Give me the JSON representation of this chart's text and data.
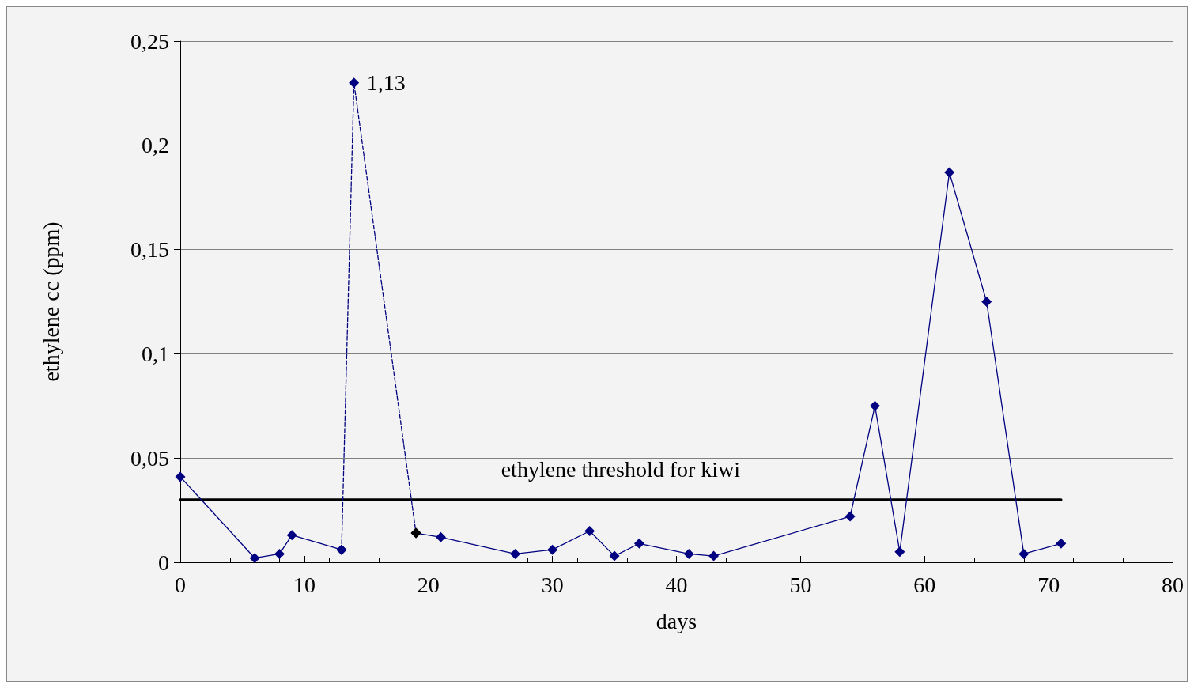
{
  "chart_data": {
    "type": "line",
    "xlabel": "days",
    "ylabel": "ethylene cc (ppm)",
    "xlim": [
      0,
      80
    ],
    "xticks": [
      0,
      10,
      20,
      30,
      40,
      50,
      60,
      70,
      80
    ],
    "ylim": [
      0,
      0.25
    ],
    "yticks": [
      0,
      {
        "value": 0.05,
        "label": "0,05"
      },
      {
        "value": 0.1,
        "label": "0,1"
      },
      {
        "value": 0.15,
        "label": "0,15"
      },
      {
        "value": 0.2,
        "label": "0,2"
      },
      {
        "value": 0.25,
        "label": "0,25"
      }
    ],
    "grid": "y",
    "legend": false,
    "marker": "diamond",
    "series": [
      {
        "color": "#000080",
        "line_style": "solid",
        "x": [
          0,
          6,
          8,
          9,
          13
        ],
        "values": [
          0.041,
          0.002,
          0.004,
          0.013,
          0.006
        ]
      },
      {
        "color": "#000080",
        "line_style": "solid",
        "x": [
          19,
          21,
          27,
          30,
          33,
          35,
          37,
          41,
          43,
          54,
          56,
          58,
          62,
          65,
          68,
          71
        ],
        "values": [
          0.014,
          0.012,
          0.004,
          0.006,
          0.015,
          0.003,
          0.009,
          0.004,
          0.003,
          0.022,
          0.075,
          0.005,
          0.187,
          0.125,
          0.004,
          0.009
        ],
        "colors": [
          "#000000",
          "#000080",
          "#000080",
          "#000080",
          "#000080",
          "#000080",
          "#000080",
          "#000080",
          "#000080",
          "#000080",
          "#000080",
          "#000080",
          "#000080",
          "#000080",
          "#000080",
          "#000080"
        ]
      },
      {
        "color": "#000080",
        "line_style": "dashed",
        "x": [
          13,
          14,
          19
        ],
        "values": [
          0.006,
          0.23,
          0.014
        ],
        "colors": [
          "#000080",
          "#000080",
          "#000000"
        ]
      },
      {
        "name": "ethylene threshold for kiwi",
        "color": "#000000",
        "line_style": "solid",
        "marker": "none",
        "x": [
          0,
          71
        ],
        "values": [
          0.03,
          0.03
        ]
      }
    ],
    "annotations": [
      {
        "text": "1,13",
        "x": 14,
        "y": 0.23
      }
    ]
  }
}
